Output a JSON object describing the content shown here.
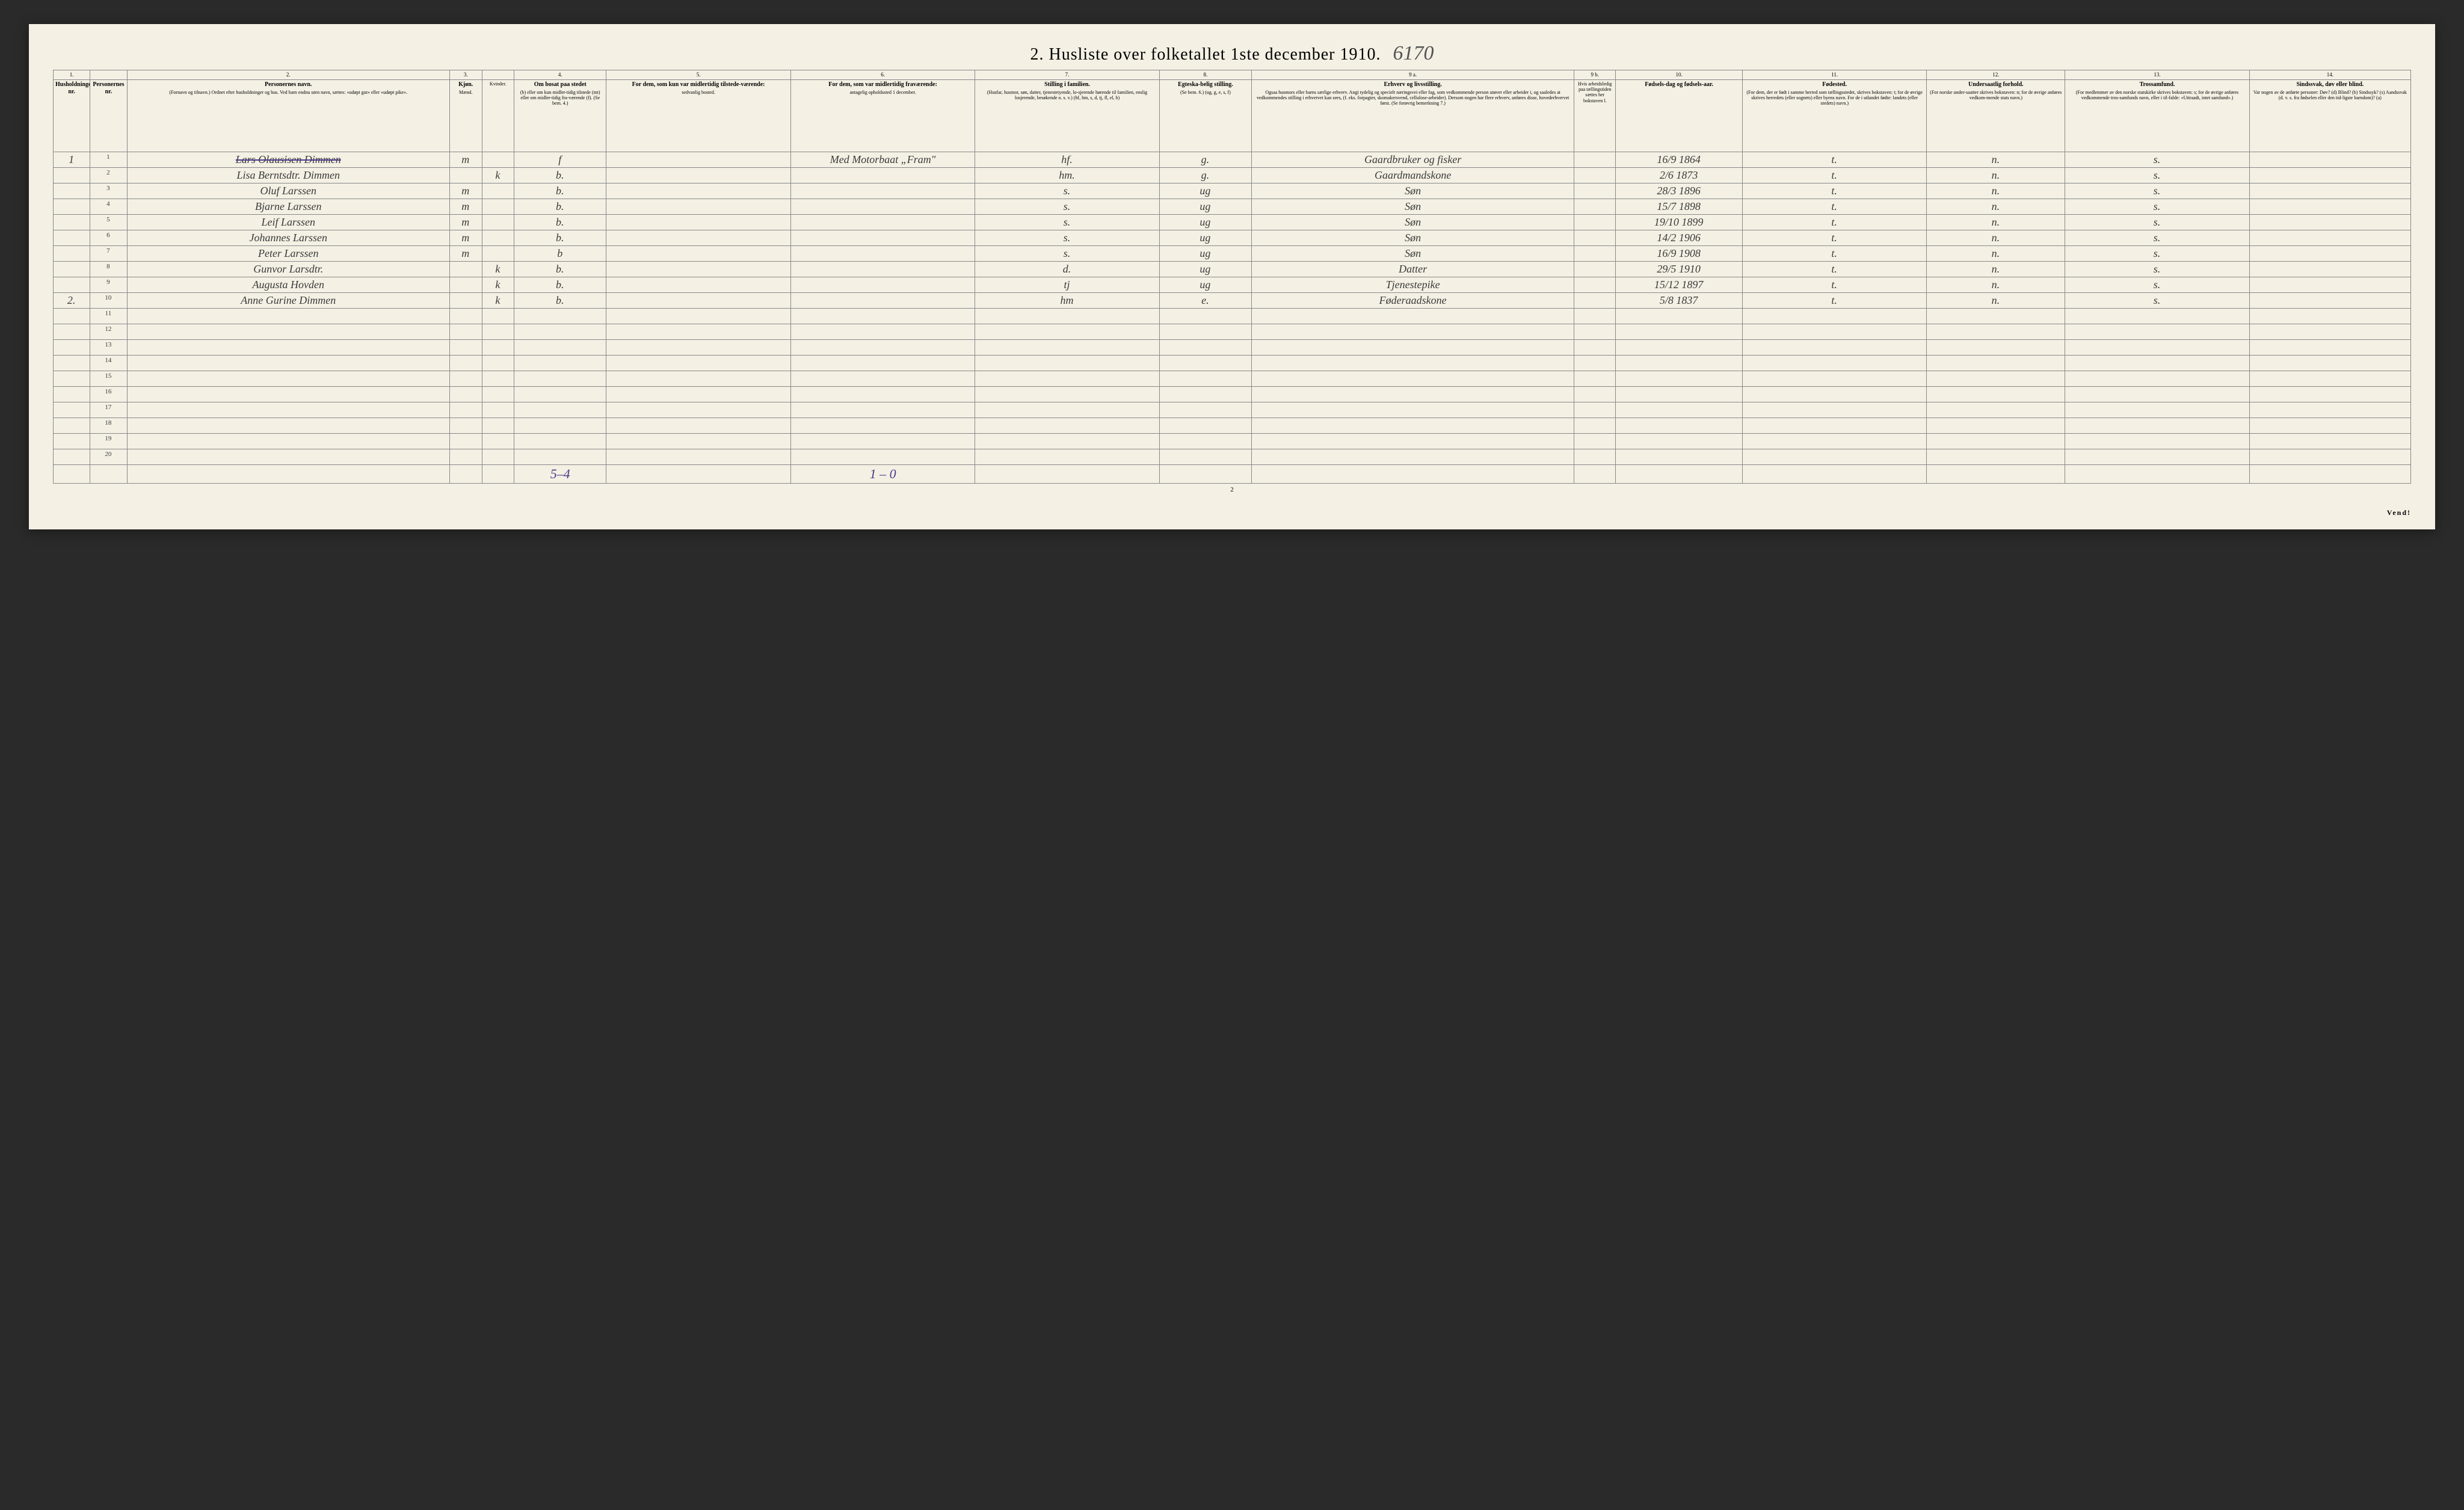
{
  "title": "2.  Husliste over folketallet 1ste december 1910.",
  "handwritten_top": "6170",
  "page_foot": "2",
  "vend": "Vend!",
  "col_nums": [
    "1.",
    "",
    "2.",
    "3.",
    "",
    "4.",
    "5.",
    "6.",
    "7.",
    "8.",
    "9 a.",
    "9 b.",
    "10.",
    "11.",
    "12.",
    "13.",
    "14."
  ],
  "headers": [
    {
      "main": "Husholdningens nr."
    },
    {
      "main": "Personernes nr."
    },
    {
      "main": "Personernes navn.",
      "sub": "(Fornavn og tilnavn.)\nOrdnet efter husholdninger og hus.\nVed barn endnu uten navn, sættes: «udøpt gut»\neller «udøpt pike»."
    },
    {
      "main": "Kjøn.",
      "sub": "Mænd."
    },
    {
      "main": "",
      "sub": "Kvinder."
    },
    {
      "main": "Om bosat paa stedet",
      "sub": "(b) eller om kun midler-tidig tilstede (mt) eller om midler-tidig fra-værende (f).\n(Se bem. 4.)"
    },
    {
      "main": "For dem, som kun var midlertidig tilstede-værende:",
      "sub": "sedvanlig bosted."
    },
    {
      "main": "For dem, som var midlertidig fraværende:",
      "sub": "antagelig opholdssted 1 december."
    },
    {
      "main": "Stilling i familien.",
      "sub": "(Husfar, husmor, søn, datter, tjenestetyende, lo-sjerende hørende til familien, enslig losjerende, besøkende o. s. v.)\n(hf, hm, s, d, tj, fl, el, b)"
    },
    {
      "main": "Egteska-belig stilling.",
      "sub": "(Se bem. 6.)\n(ug, g, e, s, f)"
    },
    {
      "main": "Erhverv og livsstilling.",
      "sub": "Ogsaa husmors eller barns særlige erhverv.\nAngi tydelig og specielt næringsvei eller fag, som vedkommende person utøver eller arbeider i, og saaledes at vedkommendes stilling i erhvervet kan sees, (f. eks. forpagter, skomakersvend, cellulose-arbeider). Dersom nogen har flere erhverv, anføres disse, hovederhvervet først.\n(Se forøvrig bemerkning 7.)"
    },
    {
      "main": "",
      "sub": "Hvis arbeidsledig paa tællingstiden sættes her bokstaven l."
    },
    {
      "main": "Fødsels-dag og fødsels-aar."
    },
    {
      "main": "Fødested.",
      "sub": "(For dem, der er født i samme herred som tællingsstedet, skrives bokstaven: t; for de øvrige skrives herredets (eller sognets) eller byens navn.\nFor de i utlandet fødte: landets (eller stedets) navn.)"
    },
    {
      "main": "Undersaatlig forhold.",
      "sub": "(For norske under-saatter skrives bokstaven: n; for de øvrige anføres vedkom-mende stats navn.)"
    },
    {
      "main": "Trossamfund.",
      "sub": "(For medlemmer av den norske statskirke skrives bokstaven: s; for de øvrige anføres vedkommende tros-samfunds navn, eller i til-falde: «Uttraadt, intet samfund».)"
    },
    {
      "main": "Sindssvak, døv eller blind.",
      "sub": "Var nogen av de anførte personer:\nDøv? (d)\nBlind? (b)\nSindssyk? (s)\nAandssvak (d. v. s. fra fødselen eller den tid-ligste barndom)? (a)"
    }
  ],
  "rows": [
    {
      "hh": "1",
      "pn": "1",
      "name": "Lars Olausisen Dimmen",
      "m": "m",
      "k": "",
      "bosat": "f",
      "mt": "",
      "frav": "Med Motorbaat „Fram\"",
      "stilling": "hf.",
      "egt": "g.",
      "erhverv": "Gaardbruker og fisker",
      "al": "",
      "fd": "16/9 1864",
      "fs": "t.",
      "u": "n.",
      "t": "s.",
      "sd": "",
      "strike": true
    },
    {
      "hh": "",
      "pn": "2",
      "name": "Lisa Berntsdtr. Dimmen",
      "m": "",
      "k": "k",
      "bosat": "b.",
      "mt": "",
      "frav": "",
      "stilling": "hm.",
      "egt": "g.",
      "erhverv": "Gaardmandskone",
      "al": "",
      "fd": "2/6 1873",
      "fs": "t.",
      "u": "n.",
      "t": "s.",
      "sd": ""
    },
    {
      "hh": "",
      "pn": "3",
      "name": "Oluf Larssen",
      "m": "m",
      "k": "",
      "bosat": "b.",
      "mt": "",
      "frav": "",
      "stilling": "s.",
      "egt": "ug",
      "erhverv": "Søn",
      "al": "",
      "fd": "28/3 1896",
      "fs": "t.",
      "u": "n.",
      "t": "s.",
      "sd": ""
    },
    {
      "hh": "",
      "pn": "4",
      "name": "Bjarne Larssen",
      "m": "m",
      "k": "",
      "bosat": "b.",
      "mt": "",
      "frav": "",
      "stilling": "s.",
      "egt": "ug",
      "erhverv": "Søn",
      "al": "",
      "fd": "15/7 1898",
      "fs": "t.",
      "u": "n.",
      "t": "s.",
      "sd": ""
    },
    {
      "hh": "",
      "pn": "5",
      "name": "Leif Larssen",
      "m": "m",
      "k": "",
      "bosat": "b.",
      "mt": "",
      "frav": "",
      "stilling": "s.",
      "egt": "ug",
      "erhverv": "Søn",
      "al": "",
      "fd": "19/10 1899",
      "fs": "t.",
      "u": "n.",
      "t": "s.",
      "sd": ""
    },
    {
      "hh": "",
      "pn": "6",
      "name": "Johannes Larssen",
      "m": "m",
      "k": "",
      "bosat": "b.",
      "mt": "",
      "frav": "",
      "stilling": "s.",
      "egt": "ug",
      "erhverv": "Søn",
      "al": "",
      "fd": "14/2 1906",
      "fs": "t.",
      "u": "n.",
      "t": "s.",
      "sd": ""
    },
    {
      "hh": "",
      "pn": "7",
      "name": "Peter Larssen",
      "m": "m",
      "k": "",
      "bosat": "b",
      "mt": "",
      "frav": "",
      "stilling": "s.",
      "egt": "ug",
      "erhverv": "Søn",
      "al": "",
      "fd": "16/9 1908",
      "fs": "t.",
      "u": "n.",
      "t": "s.",
      "sd": ""
    },
    {
      "hh": "",
      "pn": "8",
      "name": "Gunvor Larsdtr.",
      "m": "",
      "k": "k",
      "bosat": "b.",
      "mt": "",
      "frav": "",
      "stilling": "d.",
      "egt": "ug",
      "erhverv": "Datter",
      "al": "",
      "fd": "29/5 1910",
      "fs": "t.",
      "u": "n.",
      "t": "s.",
      "sd": ""
    },
    {
      "hh": "",
      "pn": "9",
      "name": "Augusta Hovden",
      "m": "",
      "k": "k",
      "bosat": "b.",
      "mt": "",
      "frav": "",
      "stilling": "tj",
      "egt": "ug",
      "erhverv": "Tjenestepike",
      "al": "",
      "fd": "15/12 1897",
      "fs": "t.",
      "u": "n.",
      "t": "s.",
      "sd": ""
    },
    {
      "hh": "2.",
      "pn": "10",
      "name": "Anne Gurine Dimmen",
      "m": "",
      "k": "k",
      "bosat": "b.",
      "mt": "",
      "frav": "",
      "stilling": "hm",
      "egt": "e.",
      "erhverv": "Føderaadskone",
      "al": "",
      "fd": "5/8 1837",
      "fs": "t.",
      "u": "n.",
      "t": "s.",
      "sd": "",
      "margin": "X  2."
    }
  ],
  "empty_row_count": 10,
  "footer_notes": {
    "col6": "5–4",
    "col8": "1 – 0"
  },
  "colors": {
    "paper": "#f4f0e4",
    "border": "#888888",
    "ink": "#3a3a3a",
    "purple": "#4a3a8a",
    "frame": "#2a2a2a"
  }
}
